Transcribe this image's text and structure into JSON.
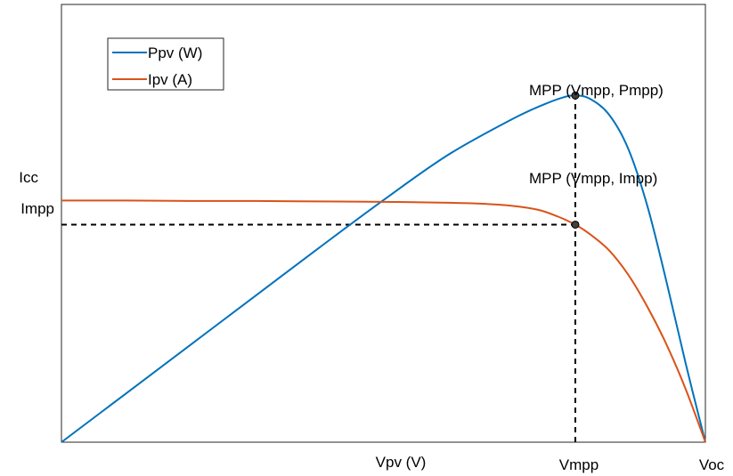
{
  "chart_data": {
    "type": "line",
    "title": "",
    "xlabel": "Vpv (V)",
    "ylabel": "",
    "xlim": [
      0,
      1
    ],
    "ylim": [
      0,
      1
    ],
    "x_ticks": [
      {
        "value": 0.798,
        "label": "Vmpp"
      },
      {
        "value": 1.0,
        "label": "Voc"
      }
    ],
    "y_ticks": [
      {
        "value": 0.552,
        "label": "Icc"
      },
      {
        "value": 0.497,
        "label": "Impp"
      }
    ],
    "legend_position": "top-left",
    "grid": false,
    "series": [
      {
        "name": "Ppv (W)",
        "color": "#0072BD",
        "x": [
          0.0,
          0.1,
          0.2,
          0.3,
          0.4,
          0.5,
          0.6,
          0.7,
          0.75,
          0.78,
          0.798,
          0.82,
          0.85,
          0.88,
          0.91,
          0.94,
          0.97,
          1.0
        ],
        "y": [
          0.0,
          0.111,
          0.222,
          0.333,
          0.444,
          0.553,
          0.656,
          0.738,
          0.772,
          0.788,
          0.792,
          0.785,
          0.749,
          0.671,
          0.539,
          0.364,
          0.176,
          0.0
        ]
      },
      {
        "name": "Ipv (A)",
        "color": "#D95319",
        "x": [
          0.0,
          0.1,
          0.2,
          0.3,
          0.4,
          0.5,
          0.6,
          0.65,
          0.7,
          0.74,
          0.77,
          0.798,
          0.82,
          0.85,
          0.88,
          0.91,
          0.94,
          0.97,
          1.0
        ],
        "y": [
          0.552,
          0.552,
          0.551,
          0.551,
          0.55,
          0.549,
          0.547,
          0.545,
          0.54,
          0.531,
          0.516,
          0.497,
          0.476,
          0.439,
          0.383,
          0.309,
          0.222,
          0.119,
          0.0
        ]
      }
    ],
    "points": [
      {
        "x": 0.798,
        "y": 0.792,
        "label": "MPP (Vmpp, Pmpp)"
      },
      {
        "x": 0.798,
        "y": 0.497,
        "label": "MPP (Vmpp, Impp)"
      }
    ],
    "reference_lines": [
      {
        "type": "vertical",
        "x": 0.798,
        "from_y": 0.0,
        "to_y": 0.792,
        "style": "dashed"
      },
      {
        "type": "horizontal",
        "y": 0.497,
        "from_x": 0.0,
        "to_x": 0.798,
        "style": "dashed"
      }
    ]
  }
}
